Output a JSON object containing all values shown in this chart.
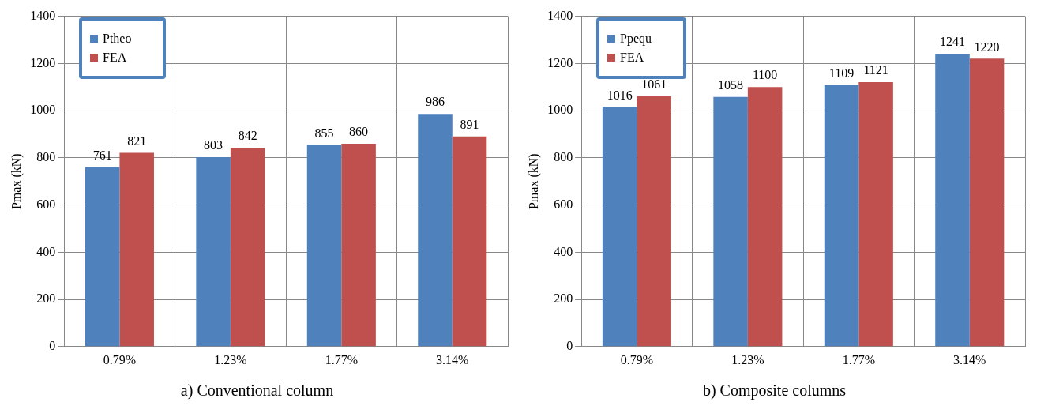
{
  "chart_data": [
    {
      "type": "bar",
      "title": "a) Conventional column",
      "ylabel": "Pmax (kN)",
      "categories": [
        "0.79%",
        "1.23%",
        "1.77%",
        "3.14%"
      ],
      "series": [
        {
          "name": "Ptheo",
          "color": "#4f81bd",
          "values": [
            761,
            803,
            855,
            986
          ]
        },
        {
          "name": "FEA",
          "color": "#c0504d",
          "values": [
            821,
            842,
            860,
            891
          ]
        }
      ],
      "ylim": [
        0,
        1400
      ],
      "yticks": [
        0,
        200,
        400,
        600,
        800,
        1000,
        1200,
        1400
      ],
      "grid": true,
      "legend": "top left",
      "data_labels": true
    },
    {
      "type": "bar",
      "title": "b) Composite columns",
      "ylabel": "Pmax (kN)",
      "categories": [
        "0.79%",
        "1.23%",
        "1.77%",
        "3.14%"
      ],
      "series": [
        {
          "name": "Ppequ",
          "color": "#4f81bd",
          "values": [
            1016,
            1058,
            1109,
            1241
          ]
        },
        {
          "name": "FEA",
          "color": "#c0504d",
          "values": [
            1061,
            1100,
            1121,
            1220
          ]
        }
      ],
      "ylim": [
        0,
        1400
      ],
      "yticks": [
        0,
        200,
        400,
        600,
        800,
        1000,
        1200,
        1400
      ],
      "grid": true,
      "legend": "top left",
      "data_labels": true
    }
  ]
}
